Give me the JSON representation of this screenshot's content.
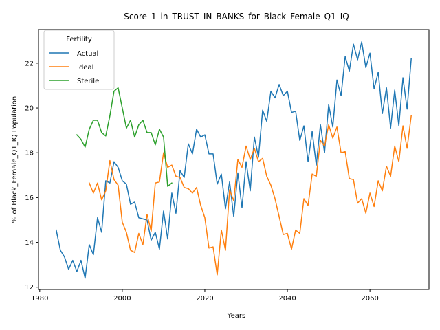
{
  "chart_data": {
    "type": "line",
    "title": "Score_1_in_TRUST_IN_BANKS_for_Black_Female_Q1_IQ",
    "xlabel": "Years",
    "ylabel": "% of Black_Female_Q1_IQ Population",
    "xlim": [
      1979.7,
      2074.3
    ],
    "ylim": [
      11.9,
      23.5
    ],
    "xticks": [
      1980,
      2000,
      2020,
      2040,
      2060
    ],
    "yticks": [
      12,
      14,
      16,
      18,
      20,
      22
    ],
    "grid": false,
    "legend": {
      "title": "Fertility",
      "placement": "top-left"
    },
    "series": [
      {
        "name": "Actual",
        "color": "#1f77b4",
        "x": [
          1984,
          1985,
          1986,
          1987,
          1988,
          1989,
          1990,
          1991,
          1992,
          1993,
          1994,
          1995,
          1996,
          1997,
          1998,
          1999,
          2000,
          2001,
          2002,
          2003,
          2004,
          2005,
          2006,
          2007,
          2008,
          2009,
          2010,
          2011,
          2012,
          2013,
          2014,
          2015,
          2016,
          2017,
          2018,
          2019,
          2020,
          2021,
          2022,
          2023,
          2024,
          2025,
          2026,
          2027,
          2028,
          2029,
          2030,
          2031,
          2032,
          2033,
          2034,
          2035,
          2036,
          2037,
          2038,
          2039,
          2040,
          2041,
          2042,
          2043,
          2044,
          2045,
          2046,
          2047,
          2048,
          2049,
          2050,
          2051,
          2052,
          2053,
          2054,
          2055,
          2056,
          2057,
          2058,
          2059,
          2060,
          2061,
          2062,
          2063,
          2064,
          2065,
          2066,
          2067,
          2068,
          2069,
          2070
        ],
        "y": [
          14.55,
          13.65,
          13.35,
          12.8,
          13.2,
          12.7,
          13.2,
          12.4,
          13.9,
          13.45,
          15.1,
          14.45,
          16.75,
          16.65,
          17.6,
          17.35,
          16.75,
          16.6,
          15.7,
          15.8,
          15.1,
          15.05,
          15.0,
          14.1,
          14.45,
          13.7,
          15.4,
          14.15,
          16.2,
          15.3,
          17.2,
          16.9,
          18.4,
          17.95,
          19.05,
          18.7,
          18.8,
          17.95,
          17.95,
          16.6,
          17.05,
          15.5,
          16.7,
          15.15,
          17.1,
          15.55,
          17.6,
          16.3,
          18.7,
          17.8,
          19.9,
          19.4,
          20.75,
          20.45,
          21.05,
          20.55,
          20.75,
          19.8,
          19.85,
          18.55,
          19.2,
          17.6,
          18.95,
          17.45,
          19.25,
          18.0,
          20.15,
          19.15,
          21.25,
          20.55,
          22.3,
          21.65,
          22.85,
          22.15,
          22.95,
          21.8,
          22.45,
          20.85,
          21.6,
          19.75,
          20.9,
          19.1,
          20.8,
          19.2,
          21.35,
          19.95,
          22.2
        ]
      },
      {
        "name": "Ideal",
        "color": "#ff7f0e",
        "x": [
          1992,
          1993,
          1994,
          1995,
          1996,
          1997,
          1998,
          1999,
          2000,
          2001,
          2002,
          2003,
          2004,
          2005,
          2006,
          2007,
          2008,
          2009,
          2010,
          2011,
          2012,
          2013,
          2014,
          2015,
          2016,
          2017,
          2018,
          2019,
          2020,
          2021,
          2022,
          2023,
          2024,
          2025,
          2026,
          2027,
          2028,
          2029,
          2030,
          2031,
          2032,
          2033,
          2034,
          2035,
          2036,
          2037,
          2038,
          2039,
          2040,
          2041,
          2042,
          2043,
          2044,
          2045,
          2046,
          2047,
          2048,
          2049,
          2050,
          2051,
          2052,
          2053,
          2054,
          2055,
          2056,
          2057,
          2058,
          2059,
          2060,
          2061,
          2062,
          2063,
          2064,
          2065,
          2066,
          2067,
          2068,
          2069,
          2070
        ],
        "y": [
          16.65,
          16.2,
          16.65,
          15.9,
          16.3,
          17.65,
          16.8,
          16.55,
          14.9,
          14.45,
          13.65,
          13.55,
          14.4,
          13.9,
          15.25,
          14.5,
          16.65,
          16.7,
          18.0,
          17.35,
          17.45,
          16.95,
          16.9,
          16.45,
          16.4,
          16.2,
          16.45,
          15.65,
          15.1,
          13.75,
          13.8,
          12.55,
          14.55,
          13.65,
          16.35,
          15.85,
          17.7,
          17.35,
          18.3,
          17.7,
          18.2,
          17.6,
          17.75,
          16.95,
          16.55,
          15.95,
          15.15,
          14.35,
          14.4,
          13.7,
          14.55,
          14.4,
          15.95,
          15.65,
          17.05,
          16.95,
          18.55,
          18.3,
          19.25,
          18.65,
          19.15,
          18.0,
          18.05,
          16.85,
          16.8,
          15.75,
          15.95,
          15.3,
          16.2,
          15.6,
          16.75,
          16.3,
          17.4,
          16.95,
          18.3,
          17.6,
          19.2,
          18.2,
          19.65
        ]
      },
      {
        "name": "Sterile",
        "color": "#2ca02c",
        "x": [
          1989,
          1990,
          1991,
          1992,
          1993,
          1994,
          1995,
          1996,
          1997,
          1998,
          1999,
          2000,
          2001,
          2002,
          2003,
          2004,
          2005,
          2006,
          2007,
          2008,
          2009,
          2010,
          2011,
          2012
        ],
        "y": [
          18.8,
          18.6,
          18.25,
          19.05,
          19.45,
          19.45,
          18.9,
          18.75,
          19.65,
          20.75,
          20.9,
          20.0,
          19.1,
          19.45,
          18.7,
          19.25,
          19.45,
          18.9,
          18.9,
          18.35,
          19.05,
          18.7,
          16.5,
          16.65
        ]
      }
    ]
  }
}
